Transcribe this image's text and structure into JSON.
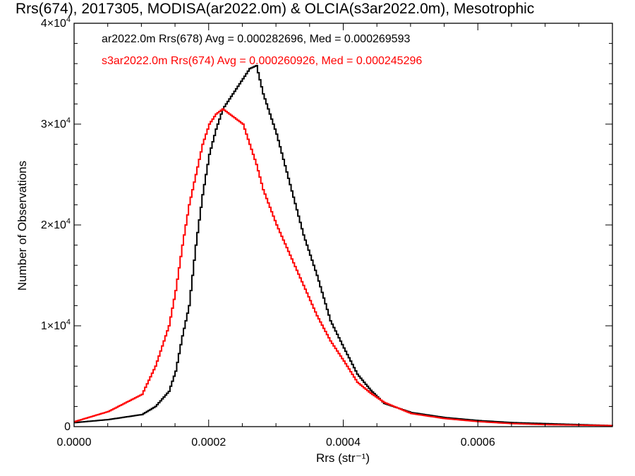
{
  "chart_data": {
    "type": "line",
    "title": "Rrs(674), 2017305, MODISA(ar2022.0m) & OLCIA(s3ar2022.0m), Mesotrophic",
    "xlabel": "Rrs (str⁻¹)",
    "ylabel": "Number of Observations",
    "xlim": [
      0,
      0.0008
    ],
    "ylim": [
      0,
      40000
    ],
    "x_ticks": [
      {
        "value": 0.0,
        "label": "0.0000"
      },
      {
        "value": 0.0002,
        "label": "0.0002"
      },
      {
        "value": 0.0004,
        "label": "0.0004"
      },
      {
        "value": 0.0006,
        "label": "0.0006"
      }
    ],
    "y_ticks": [
      {
        "value": 0,
        "label": "0"
      },
      {
        "value": 10000,
        "mantissa": "1×10",
        "exponent": "4"
      },
      {
        "value": 20000,
        "mantissa": "2×10",
        "exponent": "4"
      },
      {
        "value": 30000,
        "mantissa": "3×10",
        "exponent": "4"
      },
      {
        "value": 40000,
        "mantissa": "4×10",
        "exponent": "4"
      }
    ],
    "legend_position": "top-left",
    "grid": false,
    "series": [
      {
        "label": "ar2022.0m Rrs(678) Avg = 0.000282696, Med = 0.000269593",
        "color": "#000000",
        "x": [
          0.0,
          5e-05,
          0.0001,
          0.00012,
          0.00014,
          0.00015,
          0.00016,
          0.00017,
          0.00018,
          0.00019,
          0.0002,
          0.00021,
          0.00022,
          0.00023,
          0.00024,
          0.00025,
          0.00026,
          0.00027,
          0.00028,
          0.0003,
          0.00032,
          0.00034,
          0.00036,
          0.00038,
          0.0004,
          0.00042,
          0.00044,
          0.00046,
          0.0005,
          0.00055,
          0.0006,
          0.00065,
          0.0007,
          0.0008
        ],
        "y": [
          400,
          700,
          1200,
          2000,
          3500,
          5500,
          9000,
          12000,
          18000,
          23000,
          27000,
          29500,
          31500,
          32500,
          33500,
          34500,
          35500,
          35800,
          33000,
          29000,
          24000,
          19000,
          15000,
          10500,
          7800,
          5200,
          3600,
          2300,
          1400,
          900,
          600,
          400,
          300,
          100
        ]
      },
      {
        "label": "s3ar2022.0m Rrs(674) Avg = 0.000260926, Med = 0.000245296",
        "color": "#ff0000",
        "x": [
          0.0,
          5e-05,
          0.0001,
          0.00012,
          0.00014,
          0.00015,
          0.00016,
          0.00017,
          0.00018,
          0.00019,
          0.0002,
          0.00021,
          0.00022,
          0.00023,
          0.00024,
          0.00025,
          0.00026,
          0.00027,
          0.00028,
          0.0003,
          0.00032,
          0.00034,
          0.00036,
          0.00038,
          0.0004,
          0.00042,
          0.00044,
          0.00046,
          0.0005,
          0.00055,
          0.0006,
          0.00065,
          0.0007,
          0.0008
        ],
        "y": [
          500,
          1500,
          3200,
          6000,
          10000,
          13500,
          18000,
          22000,
          25000,
          28000,
          30000,
          31000,
          31500,
          31000,
          30500,
          30000,
          28000,
          26000,
          23500,
          20000,
          17000,
          14000,
          11000,
          8500,
          6500,
          4400,
          3300,
          2400,
          1300,
          800,
          500,
          300,
          200,
          100
        ]
      }
    ]
  }
}
